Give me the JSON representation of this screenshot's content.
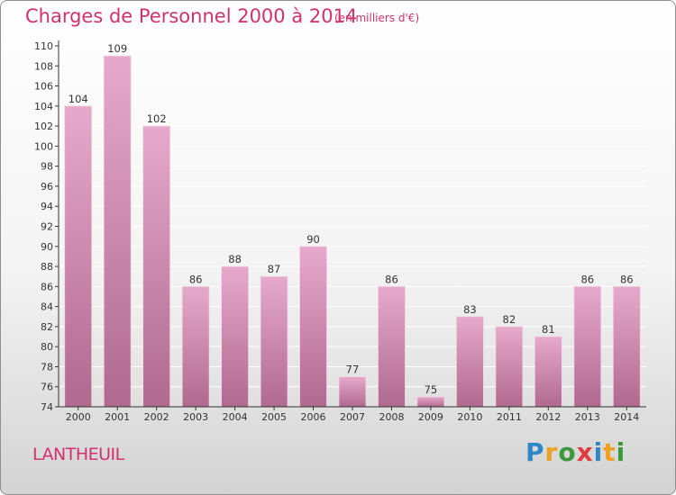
{
  "title": "Charges de Personnel 2000 à 2014",
  "unit_note": "(en milliers d'€)",
  "commune": "LANTHEUIL",
  "logo": {
    "letters": [
      "P",
      "r",
      "o",
      "x",
      "i",
      "t",
      "i"
    ],
    "colors": [
      "#2e88c8",
      "#f0a020",
      "#3a9a3a",
      "#e03a3a",
      "#2e88c8",
      "#f0a020",
      "#3a9a3a"
    ]
  },
  "colors": {
    "bar_top": "#e6a9cc",
    "bar_bottom": "#b0698f",
    "text": "#d2316b",
    "axis": "#333333"
  },
  "chart_data": {
    "type": "bar",
    "title": "Charges de Personnel 2000 à 2014",
    "categories": [
      "2000",
      "2001",
      "2002",
      "2003",
      "2004",
      "2005",
      "2006",
      "2007",
      "2008",
      "2009",
      "2010",
      "2011",
      "2012",
      "2013",
      "2014"
    ],
    "values": [
      104,
      109,
      102,
      86,
      88,
      87,
      90,
      77,
      86,
      75,
      83,
      82,
      81,
      86,
      86
    ],
    "ylim": [
      74,
      110
    ],
    "yticks": [
      74,
      76,
      78,
      80,
      82,
      84,
      86,
      88,
      90,
      92,
      94,
      96,
      98,
      100,
      102,
      104,
      106,
      108,
      110
    ],
    "xlabel": "",
    "ylabel": "",
    "grid": true,
    "data_labels": true
  }
}
